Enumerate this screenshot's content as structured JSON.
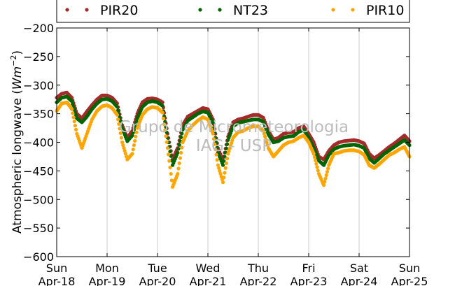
{
  "chart_data": {
    "type": "scatter",
    "ylabel_prefix": "Atmospheric longwave (",
    "ylabel_unit_base": "Wm",
    "ylabel_unit_exp": "−2",
    "ylabel_suffix": ")",
    "ylim": [
      -600,
      -200
    ],
    "yticks": [
      -200,
      -250,
      -300,
      -350,
      -400,
      -450,
      -500,
      -550,
      -600
    ],
    "yticklabels": [
      "−200",
      "−250",
      "−300",
      "−350",
      "−400",
      "−450",
      "−500",
      "−550",
      "−600"
    ],
    "xlim": [
      0,
      7
    ],
    "xticks": [
      0,
      1,
      2,
      3,
      4,
      5,
      6,
      7
    ],
    "xticklabels_line1": [
      "Sun",
      "Mon",
      "Tue",
      "Wed",
      "Thu",
      "Fri",
      "Sat",
      "Sun"
    ],
    "xticklabels_line2": [
      "Apr-18",
      "Apr-19",
      "Apr-20",
      "Apr-21",
      "Apr-22",
      "Apr-23",
      "Apr-24",
      "Apr-25"
    ],
    "grid": "vertical",
    "legend_placement": "top",
    "watermark_lines": [
      "Grupo de Micrometeorologia",
      "IAG - USP"
    ],
    "series": [
      {
        "name": "PIR20",
        "color": "#a52a2a",
        "x": [
          0.0,
          0.1,
          0.2,
          0.3,
          0.4,
          0.5,
          0.6,
          0.7,
          0.8,
          0.9,
          1.0,
          1.1,
          1.2,
          1.3,
          1.4,
          1.5,
          1.6,
          1.7,
          1.8,
          1.9,
          2.0,
          2.1,
          2.2,
          2.3,
          2.4,
          2.5,
          2.6,
          2.7,
          2.8,
          2.9,
          3.0,
          3.1,
          3.2,
          3.3,
          3.4,
          3.5,
          3.6,
          3.7,
          3.8,
          3.9,
          4.0,
          4.1,
          4.2,
          4.3,
          4.4,
          4.5,
          4.6,
          4.7,
          4.8,
          4.9,
          5.0,
          5.1,
          5.2,
          5.3,
          5.4,
          5.5,
          5.6,
          5.7,
          5.8,
          5.9,
          6.0,
          6.1,
          6.2,
          6.3,
          6.4,
          6.5,
          6.6,
          6.7,
          6.8,
          6.9,
          7.0
        ],
        "y": [
          -322,
          -315,
          -313,
          -322,
          -350,
          -358,
          -346,
          -335,
          -325,
          -318,
          -318,
          -322,
          -332,
          -370,
          -392,
          -380,
          -350,
          -330,
          -324,
          -323,
          -325,
          -330,
          -385,
          -430,
          -410,
          -370,
          -355,
          -350,
          -345,
          -340,
          -342,
          -360,
          -410,
          -432,
          -390,
          -365,
          -360,
          -358,
          -355,
          -352,
          -352,
          -357,
          -380,
          -395,
          -392,
          -385,
          -383,
          -382,
          -375,
          -372,
          -385,
          -400,
          -425,
          -430,
          -415,
          -405,
          -400,
          -398,
          -397,
          -396,
          -398,
          -402,
          -420,
          -428,
          -422,
          -415,
          -408,
          -402,
          -395,
          -388,
          -398
        ]
      },
      {
        "name": "NT23",
        "color": "#006400",
        "x": [
          0.0,
          0.1,
          0.2,
          0.3,
          0.4,
          0.5,
          0.6,
          0.7,
          0.8,
          0.9,
          1.0,
          1.1,
          1.2,
          1.3,
          1.4,
          1.5,
          1.6,
          1.7,
          1.8,
          1.9,
          2.0,
          2.1,
          2.2,
          2.3,
          2.4,
          2.5,
          2.6,
          2.7,
          2.8,
          2.9,
          3.0,
          3.1,
          3.2,
          3.3,
          3.4,
          3.5,
          3.6,
          3.7,
          3.8,
          3.9,
          4.0,
          4.1,
          4.2,
          4.3,
          4.4,
          4.5,
          4.6,
          4.7,
          4.8,
          4.9,
          5.0,
          5.1,
          5.2,
          5.3,
          5.4,
          5.5,
          5.6,
          5.7,
          5.8,
          5.9,
          6.0,
          6.1,
          6.2,
          6.3,
          6.4,
          6.5,
          6.6,
          6.7,
          6.8,
          6.9,
          7.0
        ],
        "y": [
          -330,
          -322,
          -320,
          -328,
          -358,
          -365,
          -355,
          -342,
          -332,
          -325,
          -324,
          -328,
          -338,
          -375,
          -398,
          -388,
          -358,
          -338,
          -330,
          -328,
          -330,
          -336,
          -392,
          -440,
          -418,
          -378,
          -362,
          -356,
          -350,
          -346,
          -348,
          -366,
          -418,
          -440,
          -396,
          -372,
          -366,
          -364,
          -362,
          -360,
          -360,
          -364,
          -386,
          -400,
          -398,
          -392,
          -390,
          -389,
          -382,
          -378,
          -392,
          -410,
          -432,
          -440,
          -422,
          -412,
          -408,
          -406,
          -405,
          -404,
          -406,
          -410,
          -428,
          -436,
          -428,
          -420,
          -414,
          -408,
          -402,
          -396,
          -405
        ]
      },
      {
        "name": "PIR10",
        "color": "#ffa500",
        "x": [
          0.0,
          0.1,
          0.2,
          0.3,
          0.4,
          0.5,
          0.6,
          0.7,
          0.8,
          0.9,
          1.0,
          1.1,
          1.2,
          1.3,
          1.4,
          1.5,
          1.6,
          1.7,
          1.8,
          1.9,
          2.0,
          2.1,
          2.2,
          2.3,
          2.4,
          2.5,
          2.6,
          2.7,
          2.8,
          2.9,
          3.0,
          3.1,
          3.2,
          3.3,
          3.4,
          3.5,
          3.6,
          3.7,
          3.8,
          3.9,
          4.0,
          4.1,
          4.2,
          4.3,
          4.4,
          4.5,
          4.6,
          4.7,
          4.8,
          4.9,
          5.0,
          5.1,
          5.2,
          5.3,
          5.4,
          5.5,
          5.6,
          5.7,
          5.8,
          5.9,
          6.0,
          6.1,
          6.2,
          6.3,
          6.4,
          6.5,
          6.6,
          6.7,
          6.8,
          6.9,
          7.0
        ],
        "y": [
          -345,
          -332,
          -330,
          -342,
          -385,
          -410,
          -385,
          -360,
          -345,
          -337,
          -335,
          -340,
          -352,
          -400,
          -430,
          -420,
          -375,
          -352,
          -342,
          -338,
          -340,
          -348,
          -410,
          -478,
          -455,
          -400,
          -380,
          -370,
          -362,
          -356,
          -360,
          -385,
          -440,
          -470,
          -420,
          -392,
          -382,
          -380,
          -375,
          -372,
          -372,
          -380,
          -410,
          -425,
          -415,
          -405,
          -400,
          -398,
          -392,
          -388,
          -400,
          -420,
          -455,
          -475,
          -440,
          -420,
          -418,
          -415,
          -414,
          -414,
          -416,
          -422,
          -440,
          -445,
          -438,
          -430,
          -422,
          -418,
          -412,
          -408,
          -425
        ]
      }
    ]
  }
}
